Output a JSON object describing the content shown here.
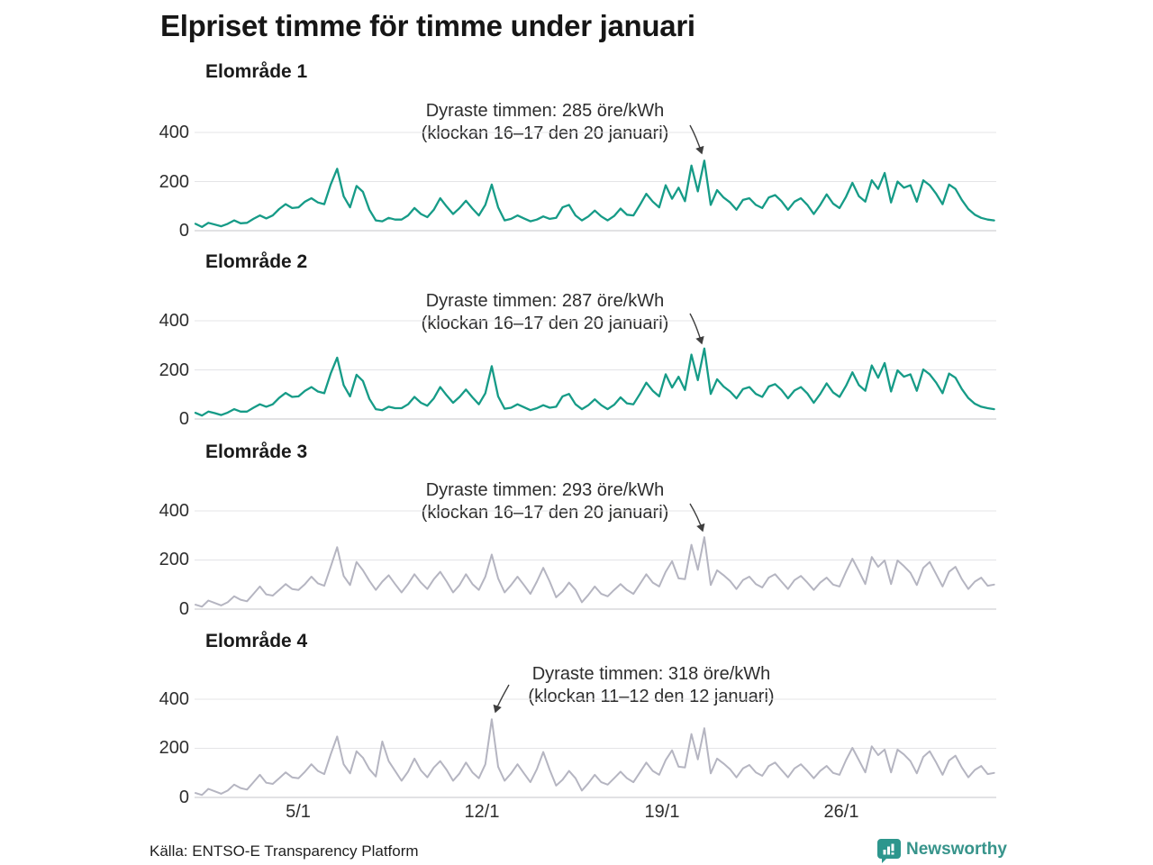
{
  "title": "Elpriset timme för timme under januari",
  "source": "Källa: ENTSO-E Transparency Platform",
  "brand": {
    "name": "Newsworthy",
    "color": "#37948b",
    "icon": "bar-chart-bubble-icon"
  },
  "axis": {
    "yticks": [
      "400",
      "200",
      "0"
    ],
    "xticks": [
      "5/1",
      "12/1",
      "19/1",
      "26/1"
    ]
  },
  "chart_data": [
    {
      "type": "line",
      "title": "Elområde 1",
      "unit": "öre/kWh",
      "x_start": "1/1",
      "x_end": "31/1",
      "x_samples_per_day": 4,
      "xticks": [
        "5/1",
        "12/1",
        "19/1",
        "26/1"
      ],
      "yticks": [
        0,
        200,
        400
      ],
      "ylim": [
        0,
        450
      ],
      "grid": true,
      "color": "#169b87",
      "annotation": {
        "line1": "Dyraste timmen: 285 öre/kWh",
        "line2": "(klockan 16–17 den 20 januari)",
        "max_value": 285,
        "max_time": "16–17 den 20 januari"
      },
      "series": [
        {
          "name": "Elområde 1",
          "values": [
            28,
            15,
            32,
            25,
            18,
            28,
            42,
            30,
            32,
            48,
            62,
            50,
            62,
            88,
            108,
            92,
            95,
            118,
            132,
            115,
            108,
            188,
            252,
            140,
            95,
            182,
            158,
            85,
            42,
            38,
            52,
            45,
            45,
            62,
            92,
            68,
            55,
            85,
            132,
            98,
            68,
            92,
            122,
            90,
            62,
            105,
            188,
            95,
            42,
            48,
            62,
            50,
            38,
            45,
            58,
            48,
            52,
            95,
            105,
            62,
            42,
            58,
            82,
            58,
            42,
            60,
            90,
            65,
            62,
            105,
            150,
            118,
            95,
            185,
            130,
            175,
            120,
            265,
            160,
            285,
            105,
            165,
            135,
            115,
            85,
            125,
            132,
            105,
            92,
            135,
            145,
            120,
            85,
            118,
            132,
            105,
            68,
            105,
            148,
            110,
            92,
            138,
            195,
            140,
            118,
            205,
            170,
            235,
            115,
            200,
            175,
            185,
            118,
            205,
            185,
            150,
            108,
            188,
            170,
            125,
            88,
            65,
            52,
            45,
            42
          ]
        }
      ]
    },
    {
      "type": "line",
      "title": "Elområde 2",
      "unit": "öre/kWh",
      "x_start": "1/1",
      "x_end": "31/1",
      "x_samples_per_day": 4,
      "xticks": [
        "5/1",
        "12/1",
        "19/1",
        "26/1"
      ],
      "yticks": [
        0,
        200,
        400
      ],
      "ylim": [
        0,
        450
      ],
      "grid": true,
      "color": "#169b87",
      "annotation": {
        "line1": "Dyraste timmen: 287 öre/kWh",
        "line2": "(klockan 16–17 den 20 januari)",
        "max_value": 287,
        "max_time": "16–17 den 20 januari"
      },
      "series": [
        {
          "name": "Elområde 2",
          "values": [
            25,
            14,
            30,
            24,
            16,
            26,
            40,
            30,
            30,
            46,
            60,
            50,
            60,
            86,
            106,
            90,
            92,
            115,
            130,
            112,
            105,
            185,
            250,
            138,
            92,
            180,
            155,
            82,
            40,
            36,
            50,
            44,
            44,
            60,
            90,
            66,
            54,
            84,
            130,
            96,
            66,
            90,
            120,
            88,
            60,
            105,
            215,
            92,
            42,
            46,
            60,
            48,
            36,
            44,
            56,
            46,
            50,
            92,
            102,
            60,
            40,
            56,
            80,
            56,
            40,
            58,
            88,
            64,
            60,
            102,
            148,
            115,
            92,
            182,
            128,
            172,
            118,
            262,
            158,
            287,
            102,
            162,
            132,
            112,
            84,
            122,
            130,
            102,
            90,
            132,
            142,
            118,
            84,
            116,
            130,
            104,
            66,
            102,
            145,
            108,
            90,
            135,
            190,
            138,
            115,
            218,
            168,
            228,
            112,
            198,
            172,
            182,
            115,
            202,
            182,
            148,
            105,
            185,
            168,
            122,
            85,
            62,
            50,
            44,
            40
          ]
        }
      ]
    },
    {
      "type": "line",
      "title": "Elområde 3",
      "unit": "öre/kWh",
      "x_start": "1/1",
      "x_end": "31/1",
      "x_samples_per_day": 4,
      "xticks": [
        "5/1",
        "12/1",
        "19/1",
        "26/1"
      ],
      "yticks": [
        0,
        200,
        400
      ],
      "ylim": [
        0,
        450
      ],
      "grid": true,
      "color": "#b5b5c1",
      "annotation": {
        "line1": "Dyraste timmen: 293 öre/kWh",
        "line2": "(klockan 16–17 den 20 januari)",
        "max_value": 293,
        "max_time": "16–17 den 20 januari"
      },
      "series": [
        {
          "name": "Elområde 3",
          "values": [
            18,
            10,
            35,
            25,
            15,
            28,
            52,
            38,
            32,
            62,
            92,
            60,
            55,
            78,
            102,
            82,
            78,
            102,
            132,
            105,
            95,
            172,
            252,
            135,
            98,
            192,
            158,
            115,
            78,
            112,
            138,
            102,
            68,
            102,
            142,
            108,
            82,
            122,
            152,
            112,
            68,
            98,
            142,
            102,
            78,
            132,
            222,
            125,
            68,
            98,
            132,
            98,
            62,
            112,
            168,
            112,
            48,
            72,
            108,
            78,
            28,
            58,
            92,
            62,
            52,
            78,
            102,
            78,
            62,
            102,
            142,
            108,
            92,
            152,
            195,
            125,
            122,
            262,
            160,
            293,
            98,
            158,
            138,
            115,
            82,
            118,
            132,
            102,
            88,
            128,
            142,
            112,
            82,
            118,
            135,
            108,
            78,
            108,
            128,
            100,
            92,
            152,
            205,
            155,
            102,
            212,
            172,
            198,
            102,
            198,
            175,
            148,
            98,
            168,
            192,
            142,
            92,
            152,
            172,
            122,
            82,
            112,
            128,
            95,
            100
          ]
        }
      ]
    },
    {
      "type": "line",
      "title": "Elområde 4",
      "unit": "öre/kWh",
      "x_start": "1/1",
      "x_end": "31/1",
      "x_samples_per_day": 4,
      "xticks": [
        "5/1",
        "12/1",
        "19/1",
        "26/1"
      ],
      "yticks": [
        0,
        200,
        400
      ],
      "ylim": [
        0,
        450
      ],
      "grid": true,
      "color": "#b5b5c1",
      "annotation": {
        "line1": "Dyraste timmen: 318 öre/kWh",
        "line2": "(klockan 11–12 den 12 januari)",
        "max_value": 318,
        "max_time": "11–12 den 12 januari"
      },
      "series": [
        {
          "name": "Elområde 4",
          "values": [
            18,
            10,
            35,
            25,
            15,
            28,
            52,
            38,
            32,
            62,
            92,
            60,
            55,
            78,
            102,
            82,
            78,
            105,
            135,
            108,
            95,
            175,
            248,
            135,
            98,
            188,
            162,
            115,
            85,
            228,
            148,
            108,
            68,
            105,
            158,
            110,
            82,
            122,
            148,
            112,
            68,
            98,
            142,
            102,
            78,
            135,
            318,
            125,
            68,
            98,
            135,
            98,
            62,
            115,
            185,
            112,
            48,
            72,
            108,
            78,
            28,
            58,
            92,
            62,
            52,
            78,
            105,
            78,
            62,
            102,
            142,
            108,
            92,
            152,
            192,
            125,
            122,
            258,
            155,
            282,
            98,
            158,
            138,
            115,
            82,
            118,
            132,
            102,
            88,
            128,
            142,
            112,
            82,
            118,
            135,
            108,
            78,
            108,
            128,
            100,
            92,
            152,
            202,
            152,
            102,
            208,
            172,
            195,
            102,
            195,
            175,
            148,
            98,
            165,
            188,
            142,
            92,
            150,
            170,
            122,
            82,
            112,
            128,
            95,
            100
          ]
        }
      ]
    }
  ]
}
